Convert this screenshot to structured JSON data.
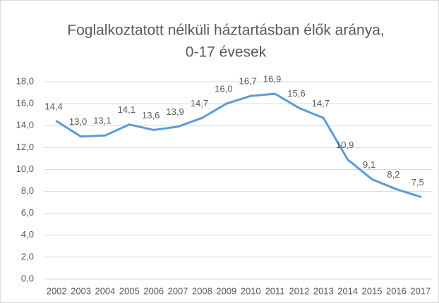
{
  "chart_data": {
    "type": "line",
    "title": [
      "Foglalkoztatott nélküli háztartásban élők aránya,",
      "0-17 évesek"
    ],
    "categories": [
      "2002",
      "2003",
      "2004",
      "2005",
      "2006",
      "2007",
      "2008",
      "2009",
      "2010",
      "2011",
      "2012",
      "2013",
      "2014",
      "2015",
      "2016",
      "2017"
    ],
    "values": [
      14.4,
      13.0,
      13.1,
      14.1,
      13.6,
      13.9,
      14.7,
      16.0,
      16.7,
      16.9,
      15.6,
      14.7,
      10.9,
      9.1,
      8.2,
      7.5
    ],
    "value_labels": [
      "14,4",
      "13,0",
      "13,1",
      "14,1",
      "13,6",
      "13,9",
      "14,7",
      "16,0",
      "16,7",
      "16,9",
      "15,6",
      "14,7",
      "10,9",
      "9,1",
      "8,2",
      "7,5"
    ],
    "color": "#5b9bd5",
    "ylim": [
      0,
      18
    ],
    "yticks": [
      {
        "value": 0,
        "label": "0,0"
      },
      {
        "value": 2,
        "label": "2,0"
      },
      {
        "value": 4,
        "label": "4,0"
      },
      {
        "value": 6,
        "label": "6,0"
      },
      {
        "value": 8,
        "label": "8,0"
      },
      {
        "value": 10,
        "label": "10,0"
      },
      {
        "value": 12,
        "label": "12,0"
      },
      {
        "value": 14,
        "label": "14,0"
      },
      {
        "value": 16,
        "label": "16,0"
      },
      {
        "value": 18,
        "label": "18,0"
      }
    ],
    "grid": true
  }
}
